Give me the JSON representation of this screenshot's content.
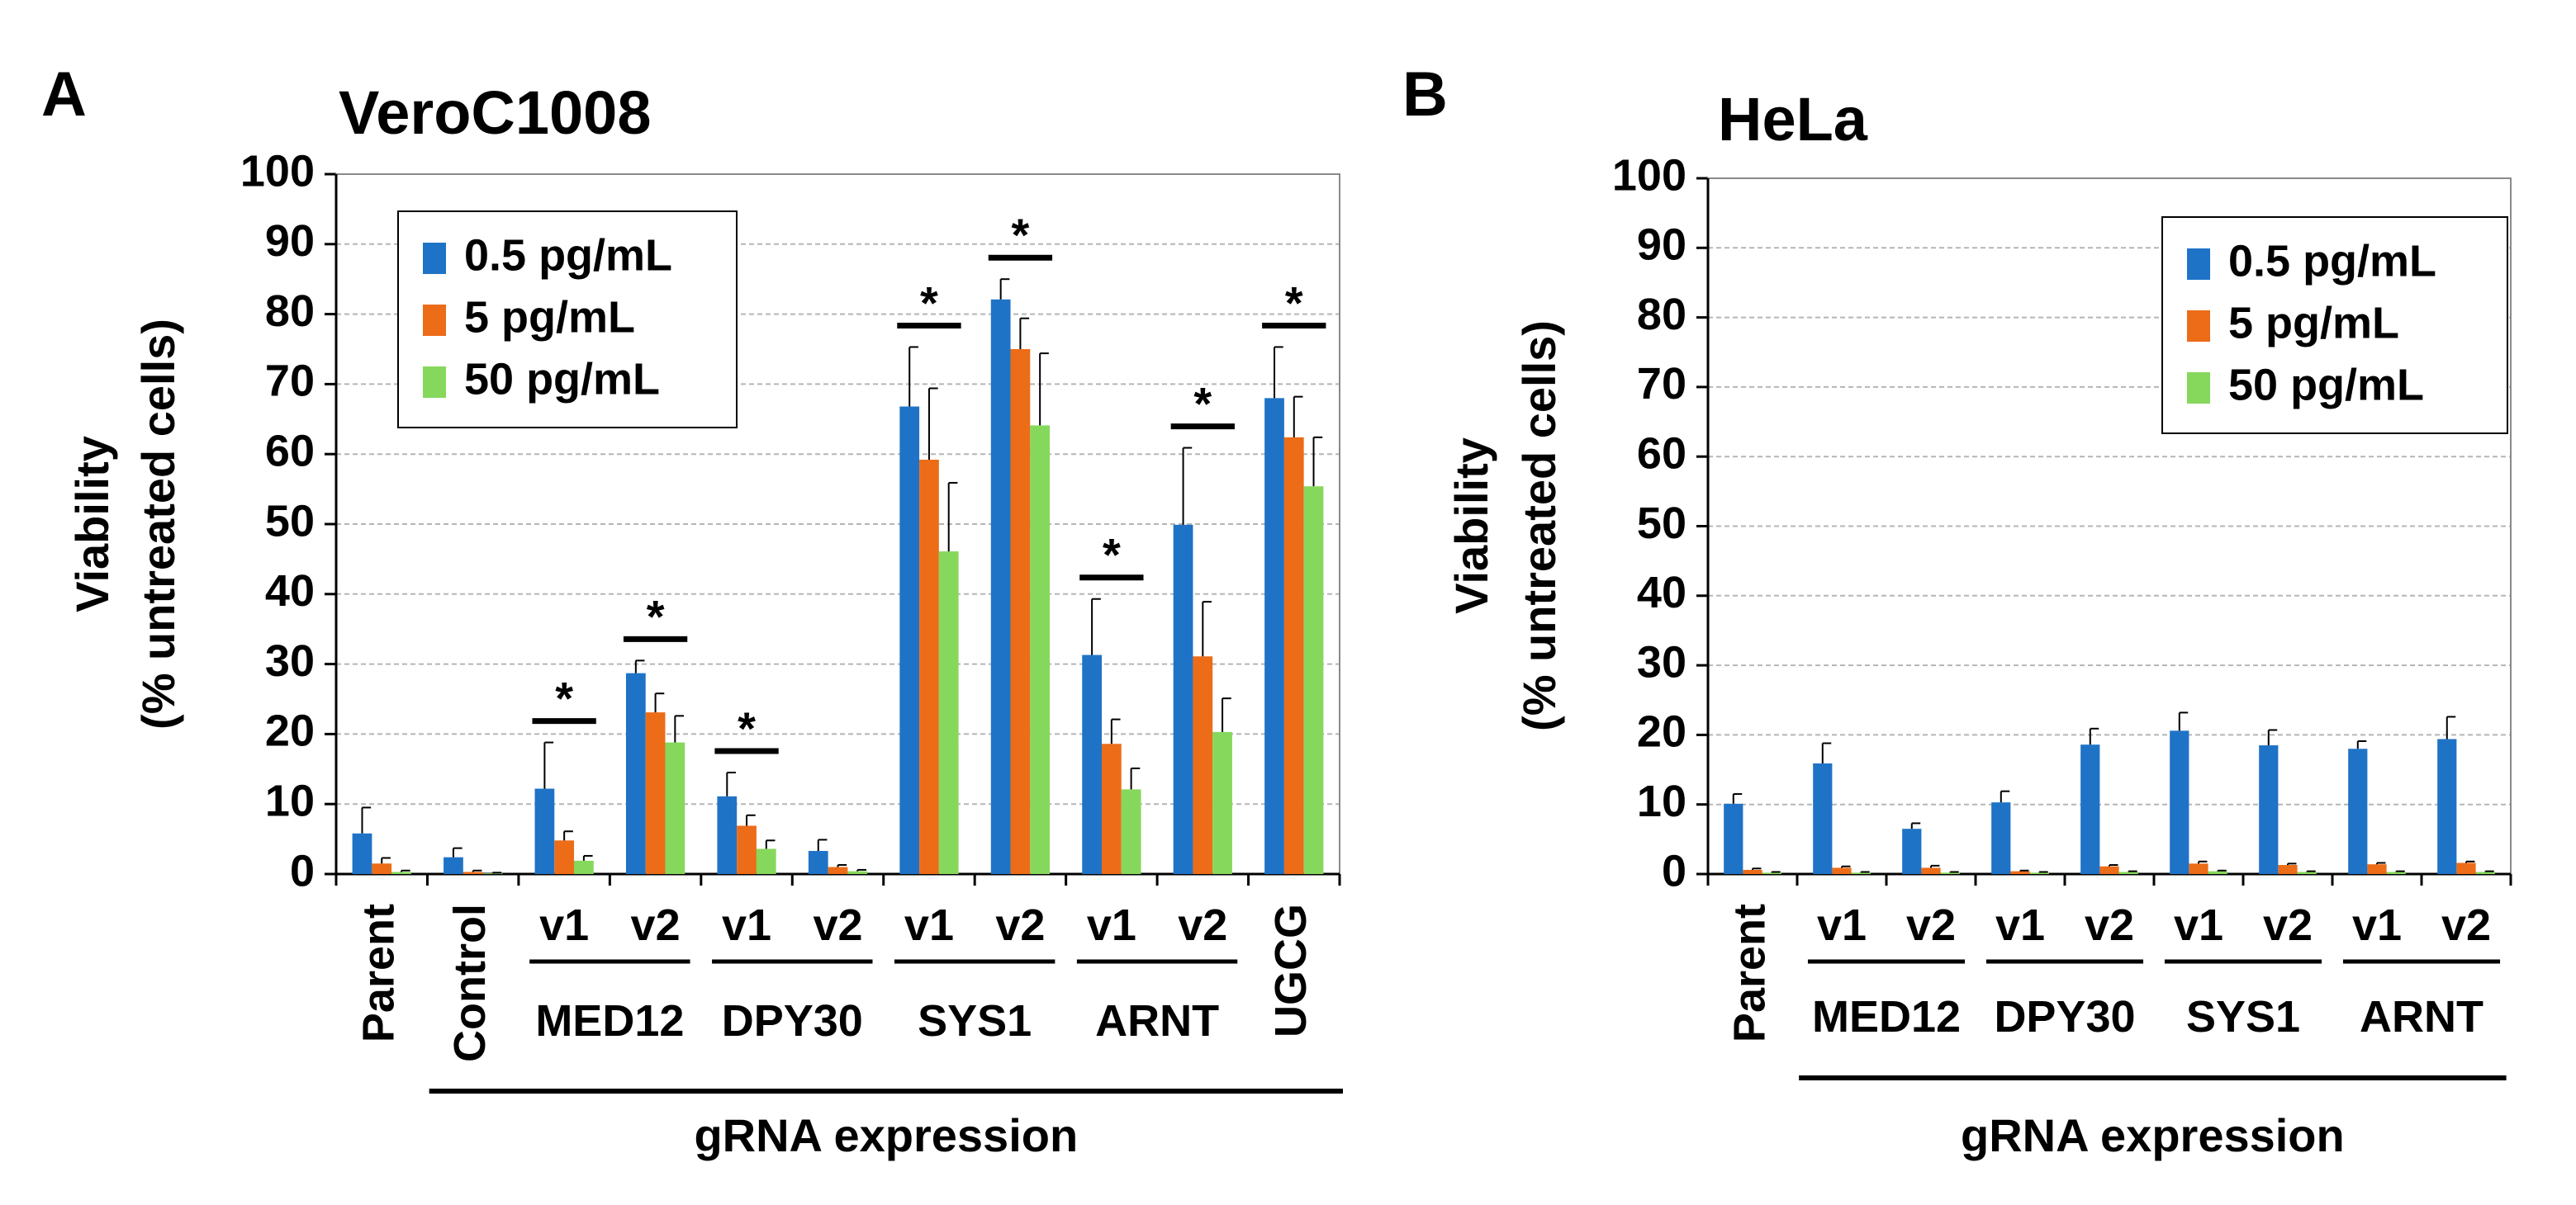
{
  "colors": {
    "s1": "#1f73c6",
    "s2": "#ec6c18",
    "s3": "#86d85c",
    "err": "#000000",
    "grid": "#b5b5b5"
  },
  "chart_data": [
    {
      "type": "bar",
      "panel_label": "A",
      "title": "VeroC1008",
      "ylabel": [
        "Viability",
        "(% untreated cells)"
      ],
      "xlabel": "gRNA expression",
      "ylim": [
        0,
        100
      ],
      "yticks": [
        0,
        10,
        20,
        30,
        40,
        50,
        60,
        70,
        80,
        90,
        100
      ],
      "legend": {
        "position": "top-left",
        "entries": [
          "0.5 pg/mL",
          "5 pg/mL",
          "50 pg/mL"
        ]
      },
      "groups": [
        {
          "label": "Parent",
          "rotated": true,
          "values": [
            5.8,
            1.5,
            0.3
          ],
          "errors": [
            3.7,
            0.8,
            0.2
          ],
          "sig": false
        },
        {
          "label": "Control",
          "rotated": true,
          "values": [
            2.4,
            0.3,
            0.1
          ],
          "errors": [
            1.3,
            0.2,
            0.1
          ],
          "sig": false
        },
        {
          "label": "v1",
          "rotated": false,
          "values": [
            12.2,
            4.8,
            1.9
          ],
          "errors": [
            6.6,
            1.3,
            0.7
          ],
          "sig": true
        },
        {
          "label": "v2",
          "rotated": false,
          "values": [
            28.7,
            23.1,
            18.8
          ],
          "errors": [
            1.8,
            2.7,
            3.8
          ],
          "sig": true
        },
        {
          "label": "v1",
          "rotated": false,
          "values": [
            11.1,
            6.9,
            3.6
          ],
          "errors": [
            3.4,
            1.5,
            1.2
          ],
          "sig": true
        },
        {
          "label": "v2",
          "rotated": false,
          "values": [
            3.3,
            1.0,
            0.4
          ],
          "errors": [
            1.6,
            0.3,
            0.2
          ],
          "sig": false
        },
        {
          "label": "v1",
          "rotated": false,
          "values": [
            66.8,
            59.2,
            46.1
          ],
          "errors": [
            8.5,
            10.2,
            9.8
          ],
          "sig": true
        },
        {
          "label": "v2",
          "rotated": false,
          "values": [
            82.1,
            75.0,
            64.1
          ],
          "errors": [
            2.9,
            4.4,
            10.3
          ],
          "sig": true
        },
        {
          "label": "v1",
          "rotated": false,
          "values": [
            31.3,
            18.6,
            12.1
          ],
          "errors": [
            8.0,
            3.5,
            3.0
          ],
          "sig": true
        },
        {
          "label": "v2",
          "rotated": false,
          "values": [
            49.9,
            31.1,
            20.3
          ],
          "errors": [
            11.0,
            7.8,
            4.8
          ],
          "sig": true
        },
        {
          "label": "UGCG",
          "rotated": true,
          "values": [
            68.0,
            62.4,
            55.4
          ],
          "errors": [
            7.3,
            5.8,
            7.0
          ],
          "sig": true
        }
      ],
      "gene_labels": [
        {
          "text": "MED12",
          "first": 2,
          "last": 3
        },
        {
          "text": "DPY30",
          "first": 4,
          "last": 5
        },
        {
          "text": "SYS1",
          "first": 6,
          "last": 7
        },
        {
          "text": "ARNT",
          "first": 8,
          "last": 9
        }
      ],
      "gRNA_span": [
        1,
        10
      ],
      "sig_marker": "*"
    },
    {
      "type": "bar",
      "panel_label": "B",
      "title": "HeLa",
      "ylabel": [
        "Viability",
        "(% untreated cells)"
      ],
      "xlabel": "gRNA expression",
      "ylim": [
        0,
        100
      ],
      "yticks": [
        0,
        10,
        20,
        30,
        40,
        50,
        60,
        70,
        80,
        90,
        100
      ],
      "legend": {
        "position": "top-right",
        "entries": [
          "0.5 pg/mL",
          "5 pg/mL",
          "50 pg/mL"
        ]
      },
      "groups": [
        {
          "label": "Parent",
          "rotated": true,
          "values": [
            10.1,
            0.6,
            0.2
          ],
          "errors": [
            1.4,
            0.2,
            0.1
          ],
          "sig": false
        },
        {
          "label": "v1",
          "rotated": false,
          "values": [
            15.9,
            0.9,
            0.2
          ],
          "errors": [
            2.9,
            0.2,
            0.1
          ],
          "sig": false
        },
        {
          "label": "v2",
          "rotated": false,
          "values": [
            6.5,
            0.9,
            0.2
          ],
          "errors": [
            0.8,
            0.3,
            0.1
          ],
          "sig": false
        },
        {
          "label": "v1",
          "rotated": false,
          "values": [
            10.3,
            0.4,
            0.2
          ],
          "errors": [
            1.6,
            0.1,
            0.1
          ],
          "sig": false
        },
        {
          "label": "v2",
          "rotated": false,
          "values": [
            18.6,
            1.1,
            0.3
          ],
          "errors": [
            2.3,
            0.2,
            0.1
          ],
          "sig": false
        },
        {
          "label": "v1",
          "rotated": false,
          "values": [
            20.6,
            1.5,
            0.4
          ],
          "errors": [
            2.6,
            0.3,
            0.1
          ],
          "sig": false
        },
        {
          "label": "v2",
          "rotated": false,
          "values": [
            18.5,
            1.3,
            0.3
          ],
          "errors": [
            2.2,
            0.2,
            0.1
          ],
          "sig": false
        },
        {
          "label": "v1",
          "rotated": false,
          "values": [
            18.0,
            1.4,
            0.3
          ],
          "errors": [
            1.1,
            0.2,
            0.1
          ],
          "sig": false
        },
        {
          "label": "v2",
          "rotated": false,
          "values": [
            19.4,
            1.6,
            0.3
          ],
          "errors": [
            3.2,
            0.2,
            0.1
          ],
          "sig": false
        }
      ],
      "gene_labels": [
        {
          "text": "MED12",
          "first": 1,
          "last": 2
        },
        {
          "text": "DPY30",
          "first": 3,
          "last": 4
        },
        {
          "text": "SYS1",
          "first": 5,
          "last": 6
        },
        {
          "text": "ARNT",
          "first": 7,
          "last": 8
        }
      ],
      "gRNA_span": [
        1,
        8
      ],
      "sig_marker": "*"
    }
  ]
}
